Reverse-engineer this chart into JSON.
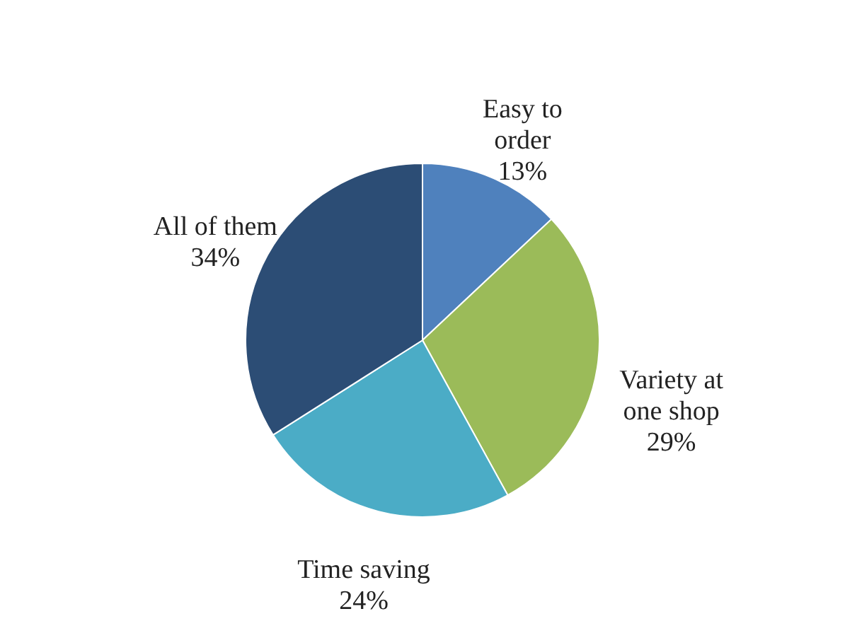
{
  "chart_data": {
    "type": "pie",
    "categories": [
      "Easy to order",
      "Variety at one shop",
      "Time saving",
      "All of them"
    ],
    "values": [
      13,
      29,
      24,
      34
    ],
    "value_labels": [
      "13%",
      "29%",
      "24%",
      "34%"
    ],
    "colors": [
      "#4f81bd",
      "#9bbb59",
      "#4bacc6",
      "#2c4d75"
    ],
    "legend": false
  }
}
